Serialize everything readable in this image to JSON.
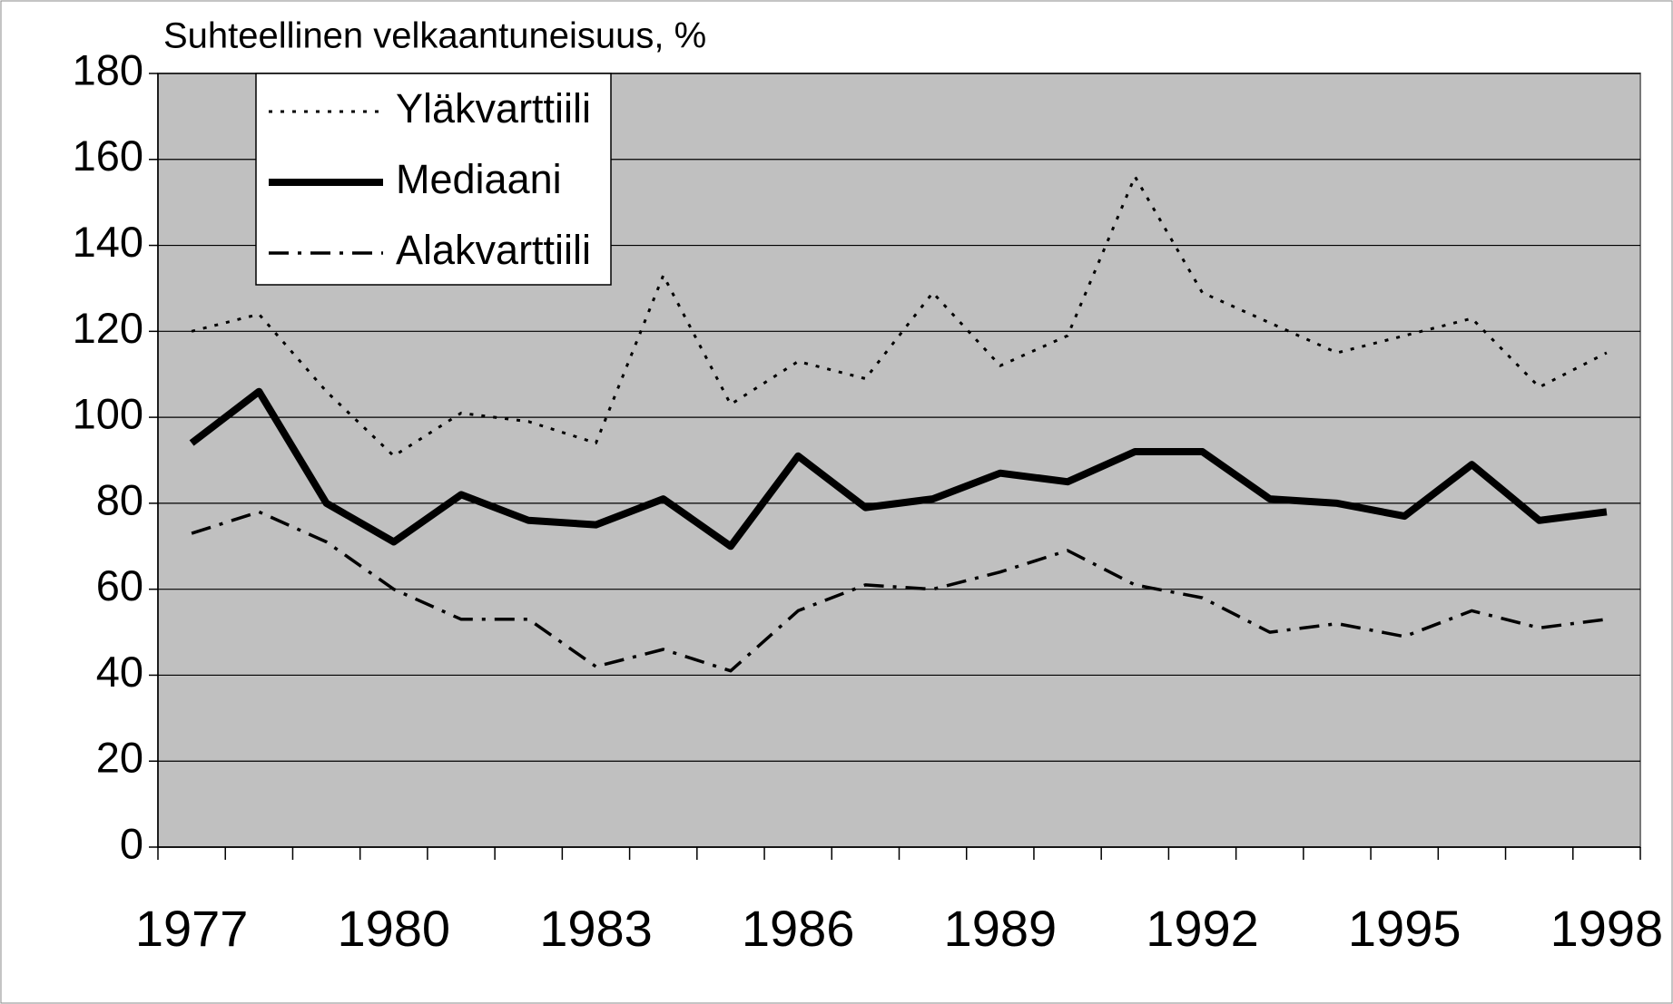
{
  "chart_data": {
    "type": "line",
    "title": "Suhteellinen velkaantuneisuus, %",
    "categories": [
      "1977",
      null,
      null,
      "1980",
      null,
      null,
      "1983",
      null,
      null,
      "1986",
      null,
      null,
      "1989",
      null,
      null,
      "1992",
      null,
      null,
      "1995",
      null,
      null,
      "1998"
    ],
    "series": [
      {
        "name": "Yläkvarttiili",
        "color": "#000000",
        "style": "dotted",
        "values": [
          120,
          124,
          106,
          91,
          101,
          99,
          94,
          133,
          103,
          113,
          109,
          129,
          112,
          119,
          156,
          129,
          122,
          115,
          119,
          123,
          107,
          115
        ]
      },
      {
        "name": "Mediaani",
        "color": "#000000",
        "style": "solid",
        "values": [
          94,
          106,
          80,
          71,
          82,
          76,
          75,
          81,
          70,
          91,
          79,
          81,
          87,
          85,
          92,
          92,
          81,
          80,
          77,
          89,
          76,
          78
        ]
      },
      {
        "name": "Alakvarttiili",
        "color": "#000000",
        "style": "dashdot",
        "values": [
          73,
          78,
          71,
          60,
          53,
          53,
          42,
          46,
          41,
          55,
          61,
          60,
          64,
          69,
          61,
          58,
          50,
          52,
          49,
          55,
          51,
          53
        ]
      }
    ],
    "ylim": [
      0,
      180
    ],
    "yticks": [
      0,
      20,
      40,
      60,
      80,
      100,
      120,
      140,
      160,
      180
    ],
    "grid": true,
    "background": "#c0c0c0",
    "legend": "top-left"
  }
}
